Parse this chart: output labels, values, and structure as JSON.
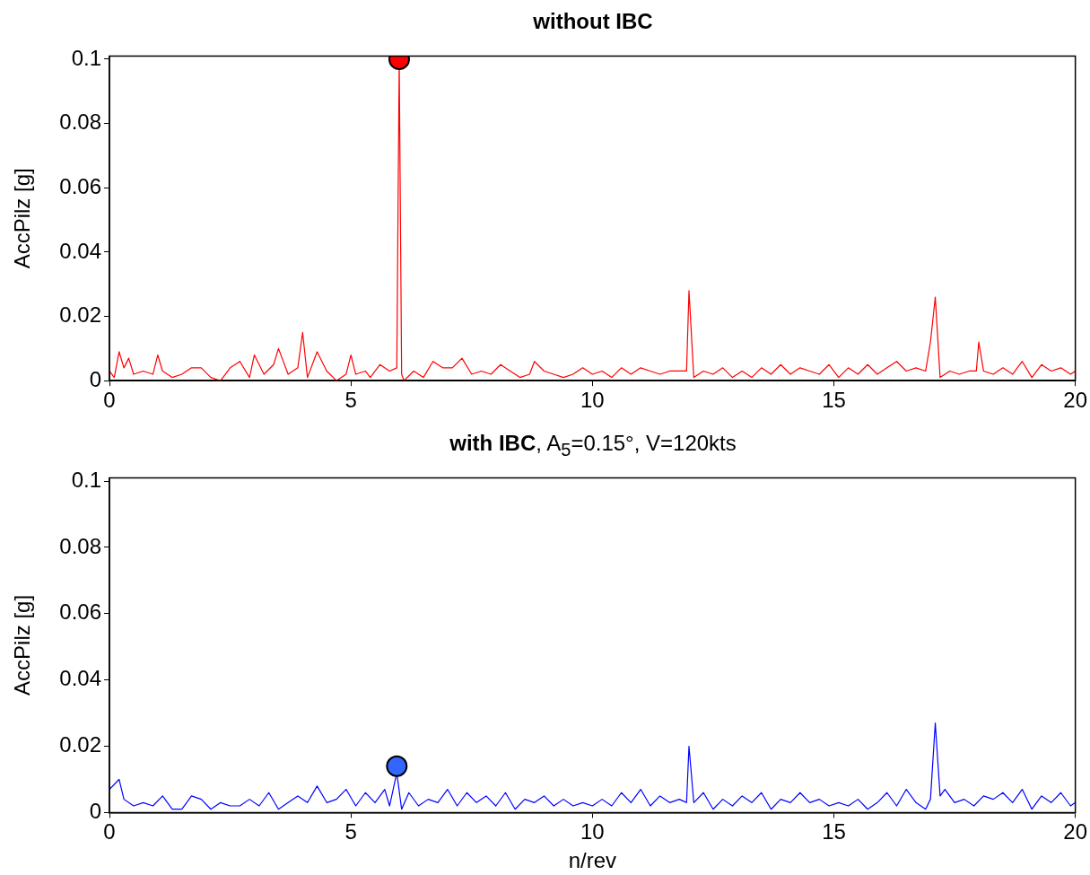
{
  "chart_data": [
    {
      "type": "line",
      "title": "without IBC",
      "ylabel": "AccPilz [g]",
      "xlim": [
        0,
        20
      ],
      "xticks": [
        0,
        5,
        10,
        15,
        20
      ],
      "ylim": [
        0,
        0.101
      ],
      "yticks": [
        0,
        0.02,
        0.04,
        0.06,
        0.08,
        0.1
      ],
      "grid": false,
      "legend": false,
      "marker": "none",
      "line_style": "solid",
      "series": [
        {
          "color": "#ff0000",
          "x": [
            0,
            0.1,
            0.2,
            0.3,
            0.4,
            0.5,
            0.7,
            0.9,
            1.0,
            1.1,
            1.3,
            1.5,
            1.7,
            1.9,
            2.1,
            2.3,
            2.5,
            2.7,
            2.9,
            3.0,
            3.2,
            3.4,
            3.5,
            3.7,
            3.9,
            4.0,
            4.1,
            4.3,
            4.5,
            4.7,
            4.9,
            5.0,
            5.1,
            5.3,
            5.4,
            5.6,
            5.8,
            5.95,
            6.0,
            6.05,
            6.1,
            6.3,
            6.5,
            6.7,
            6.9,
            7.1,
            7.3,
            7.5,
            7.7,
            7.9,
            8.1,
            8.3,
            8.5,
            8.7,
            8.8,
            9.0,
            9.2,
            9.4,
            9.6,
            9.8,
            10.0,
            10.2,
            10.4,
            10.6,
            10.8,
            11.0,
            11.2,
            11.4,
            11.6,
            11.8,
            11.95,
            12.0,
            12.1,
            12.3,
            12.5,
            12.7,
            12.9,
            13.1,
            13.3,
            13.5,
            13.7,
            13.9,
            14.1,
            14.3,
            14.5,
            14.7,
            14.9,
            15.1,
            15.3,
            15.5,
            15.7,
            15.9,
            16.1,
            16.3,
            16.5,
            16.7,
            16.9,
            17.0,
            17.1,
            17.2,
            17.4,
            17.6,
            17.8,
            17.95,
            18.0,
            18.1,
            18.3,
            18.5,
            18.7,
            18.9,
            19.1,
            19.3,
            19.5,
            19.7,
            19.9,
            20.0
          ],
          "values": [
            0.003,
            0.001,
            0.009,
            0.004,
            0.007,
            0.002,
            0.003,
            0.002,
            0.008,
            0.003,
            0.001,
            0.002,
            0.004,
            0.004,
            0.001,
            0.0,
            0.004,
            0.006,
            0.001,
            0.008,
            0.002,
            0.005,
            0.01,
            0.002,
            0.004,
            0.015,
            0.001,
            0.009,
            0.003,
            0.0,
            0.002,
            0.008,
            0.002,
            0.003,
            0.001,
            0.005,
            0.003,
            0.004,
            0.1,
            0.002,
            0.0,
            0.003,
            0.001,
            0.006,
            0.004,
            0.004,
            0.007,
            0.002,
            0.003,
            0.002,
            0.005,
            0.003,
            0.001,
            0.002,
            0.006,
            0.003,
            0.002,
            0.001,
            0.002,
            0.004,
            0.002,
            0.003,
            0.001,
            0.004,
            0.002,
            0.004,
            0.003,
            0.002,
            0.003,
            0.003,
            0.003,
            0.028,
            0.001,
            0.003,
            0.002,
            0.004,
            0.001,
            0.003,
            0.001,
            0.004,
            0.002,
            0.005,
            0.002,
            0.004,
            0.003,
            0.002,
            0.005,
            0.001,
            0.004,
            0.002,
            0.005,
            0.002,
            0.004,
            0.006,
            0.003,
            0.004,
            0.003,
            0.012,
            0.026,
            0.001,
            0.003,
            0.002,
            0.003,
            0.003,
            0.012,
            0.003,
            0.002,
            0.004,
            0.002,
            0.006,
            0.001,
            0.005,
            0.003,
            0.004,
            0.002,
            0.003
          ]
        },
        {
          "type": "scatter",
          "marker": "circle",
          "color": "#ff0000",
          "x": [
            6
          ],
          "values": [
            0.1
          ]
        }
      ]
    },
    {
      "type": "line",
      "title": "with IBC, A$_{5}$=0.15°, V=120kts",
      "xlabel": "n/rev",
      "ylabel": "AccPilz [g]",
      "xlim": [
        0,
        20
      ],
      "xticks": [
        0,
        5,
        10,
        15,
        20
      ],
      "ylim": [
        0,
        0.101
      ],
      "yticks": [
        0,
        0.02,
        0.04,
        0.06,
        0.08,
        0.1
      ],
      "grid": false,
      "legend": false,
      "marker": "none",
      "line_style": "solid",
      "series": [
        {
          "color": "#0000ff",
          "x": [
            0,
            0.2,
            0.3,
            0.5,
            0.7,
            0.9,
            1.1,
            1.3,
            1.5,
            1.7,
            1.9,
            2.1,
            2.3,
            2.5,
            2.7,
            2.9,
            3.1,
            3.3,
            3.5,
            3.7,
            3.9,
            4.1,
            4.3,
            4.5,
            4.7,
            4.9,
            5.1,
            5.3,
            5.5,
            5.7,
            5.8,
            5.95,
            6.05,
            6.2,
            6.4,
            6.6,
            6.8,
            7.0,
            7.2,
            7.4,
            7.6,
            7.8,
            8.0,
            8.2,
            8.4,
            8.6,
            8.8,
            9.0,
            9.2,
            9.4,
            9.6,
            9.8,
            10.0,
            10.2,
            10.4,
            10.6,
            10.8,
            11.0,
            11.2,
            11.4,
            11.6,
            11.8,
            11.95,
            12.0,
            12.1,
            12.3,
            12.5,
            12.7,
            12.9,
            13.1,
            13.3,
            13.5,
            13.7,
            13.9,
            14.1,
            14.3,
            14.5,
            14.7,
            14.9,
            15.1,
            15.3,
            15.5,
            15.7,
            15.9,
            16.1,
            16.3,
            16.5,
            16.7,
            16.9,
            17.0,
            17.1,
            17.2,
            17.3,
            17.5,
            17.7,
            17.9,
            18.1,
            18.3,
            18.5,
            18.7,
            18.9,
            19.1,
            19.3,
            19.5,
            19.7,
            19.9,
            20.0
          ],
          "values": [
            0.007,
            0.01,
            0.004,
            0.002,
            0.003,
            0.002,
            0.005,
            0.001,
            0.001,
            0.005,
            0.004,
            0.001,
            0.003,
            0.002,
            0.002,
            0.004,
            0.002,
            0.006,
            0.001,
            0.003,
            0.005,
            0.003,
            0.008,
            0.003,
            0.004,
            0.007,
            0.002,
            0.006,
            0.003,
            0.007,
            0.002,
            0.012,
            0.001,
            0.006,
            0.002,
            0.004,
            0.003,
            0.007,
            0.002,
            0.006,
            0.003,
            0.005,
            0.002,
            0.006,
            0.001,
            0.004,
            0.003,
            0.005,
            0.002,
            0.004,
            0.002,
            0.003,
            0.002,
            0.004,
            0.002,
            0.006,
            0.003,
            0.007,
            0.002,
            0.005,
            0.003,
            0.004,
            0.003,
            0.02,
            0.003,
            0.006,
            0.001,
            0.004,
            0.002,
            0.005,
            0.003,
            0.006,
            0.001,
            0.004,
            0.003,
            0.006,
            0.003,
            0.004,
            0.002,
            0.003,
            0.002,
            0.004,
            0.001,
            0.003,
            0.006,
            0.002,
            0.007,
            0.003,
            0.001,
            0.004,
            0.027,
            0.005,
            0.007,
            0.003,
            0.004,
            0.002,
            0.005,
            0.004,
            0.006,
            0.003,
            0.007,
            0.001,
            0.005,
            0.003,
            0.006,
            0.002,
            0.003
          ]
        },
        {
          "type": "scatter",
          "marker": "circle",
          "color": "#3366ff",
          "x": [
            5.95
          ],
          "values": [
            0.014
          ]
        }
      ]
    }
  ]
}
